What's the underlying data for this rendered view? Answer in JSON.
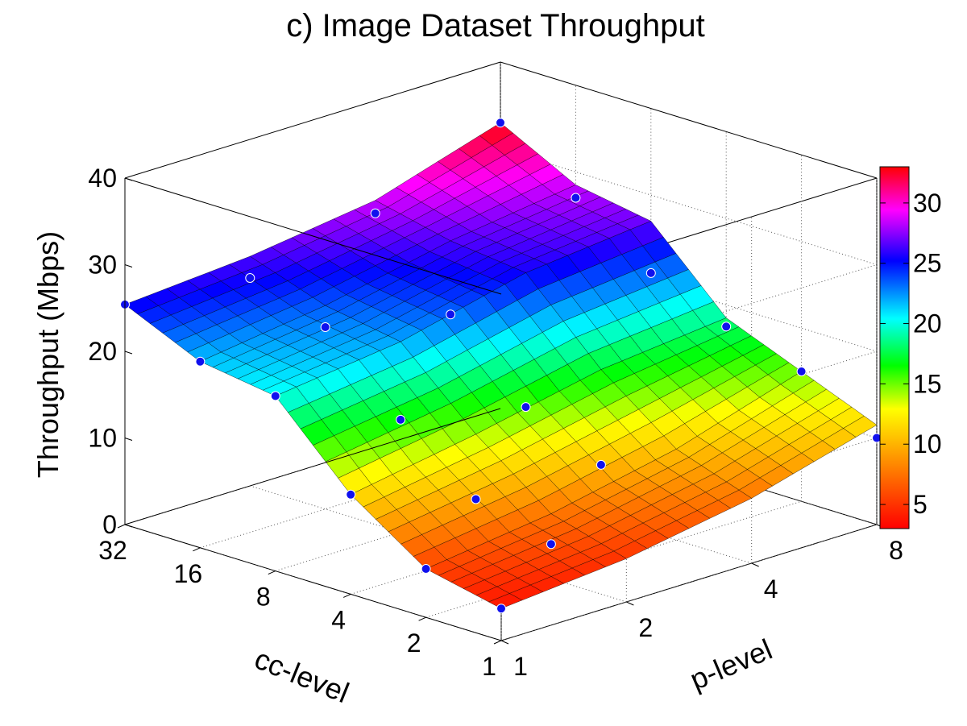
{
  "chart_data": {
    "type": "surface3d",
    "title": "c) Image Dataset Throughput",
    "xlabel": "cc-level",
    "ylabel": "p-level",
    "zlabel": "Throughput (Mbps)",
    "x_ticks": [
      "1",
      "2",
      "4",
      "8",
      "16",
      "32"
    ],
    "y_ticks": [
      "1",
      "2",
      "4",
      "8"
    ],
    "z_ticks": [
      "0",
      "10",
      "20",
      "30",
      "40"
    ],
    "zlim": [
      0,
      40
    ],
    "grid": true,
    "colorbar": {
      "ticks": [
        "5",
        "10",
        "15",
        "20",
        "25",
        "30"
      ],
      "range": [
        3,
        33
      ]
    },
    "cc_levels": [
      1,
      2,
      4,
      8,
      16,
      32
    ],
    "p_levels": [
      1,
      2,
      4,
      8
    ],
    "surface": [
      [
        3.7,
        5.6,
        11.5,
        20.2,
        21.5,
        25.4
      ],
      [
        5.0,
        7.5,
        14.0,
        22.0,
        23.5,
        26.5
      ],
      [
        7.5,
        10.5,
        17.0,
        25.5,
        26.5,
        28.5
      ],
      [
        11.5,
        15.0,
        18.5,
        27.0,
        28.5,
        33.0
      ]
    ],
    "points": [
      {
        "cc": 1,
        "p": 1,
        "z": 3.7
      },
      {
        "cc": 2,
        "p": 1,
        "z": 5.6
      },
      {
        "cc": 4,
        "p": 1,
        "z": 11.5
      },
      {
        "cc": 8,
        "p": 1,
        "z": 20.2
      },
      {
        "cc": 16,
        "p": 1,
        "z": 21.5
      },
      {
        "cc": 32,
        "p": 1,
        "z": 25.4
      },
      {
        "cc": 2,
        "p": 2,
        "z": 4.0
      },
      {
        "cc": 4,
        "p": 2,
        "z": 6.5
      },
      {
        "cc": 8,
        "p": 2,
        "z": 13.0
      },
      {
        "cc": 16,
        "p": 2,
        "z": 21.0
      },
      {
        "cc": 32,
        "p": 2,
        "z": 24.0
      },
      {
        "cc": 4,
        "p": 4,
        "z": 6.0
      },
      {
        "cc": 8,
        "p": 4,
        "z": 10.0
      },
      {
        "cc": 16,
        "p": 4,
        "z": 18.0
      },
      {
        "cc": 32,
        "p": 4,
        "z": 27.0
      },
      {
        "cc": 1,
        "p": 8,
        "z": 10.0
      },
      {
        "cc": 2,
        "p": 8,
        "z": 15.0
      },
      {
        "cc": 4,
        "p": 8,
        "z": 17.5
      },
      {
        "cc": 8,
        "p": 8,
        "z": 21.0
      },
      {
        "cc": 16,
        "p": 8,
        "z": 27.0
      },
      {
        "cc": 32,
        "p": 8,
        "z": 33.0
      }
    ]
  }
}
